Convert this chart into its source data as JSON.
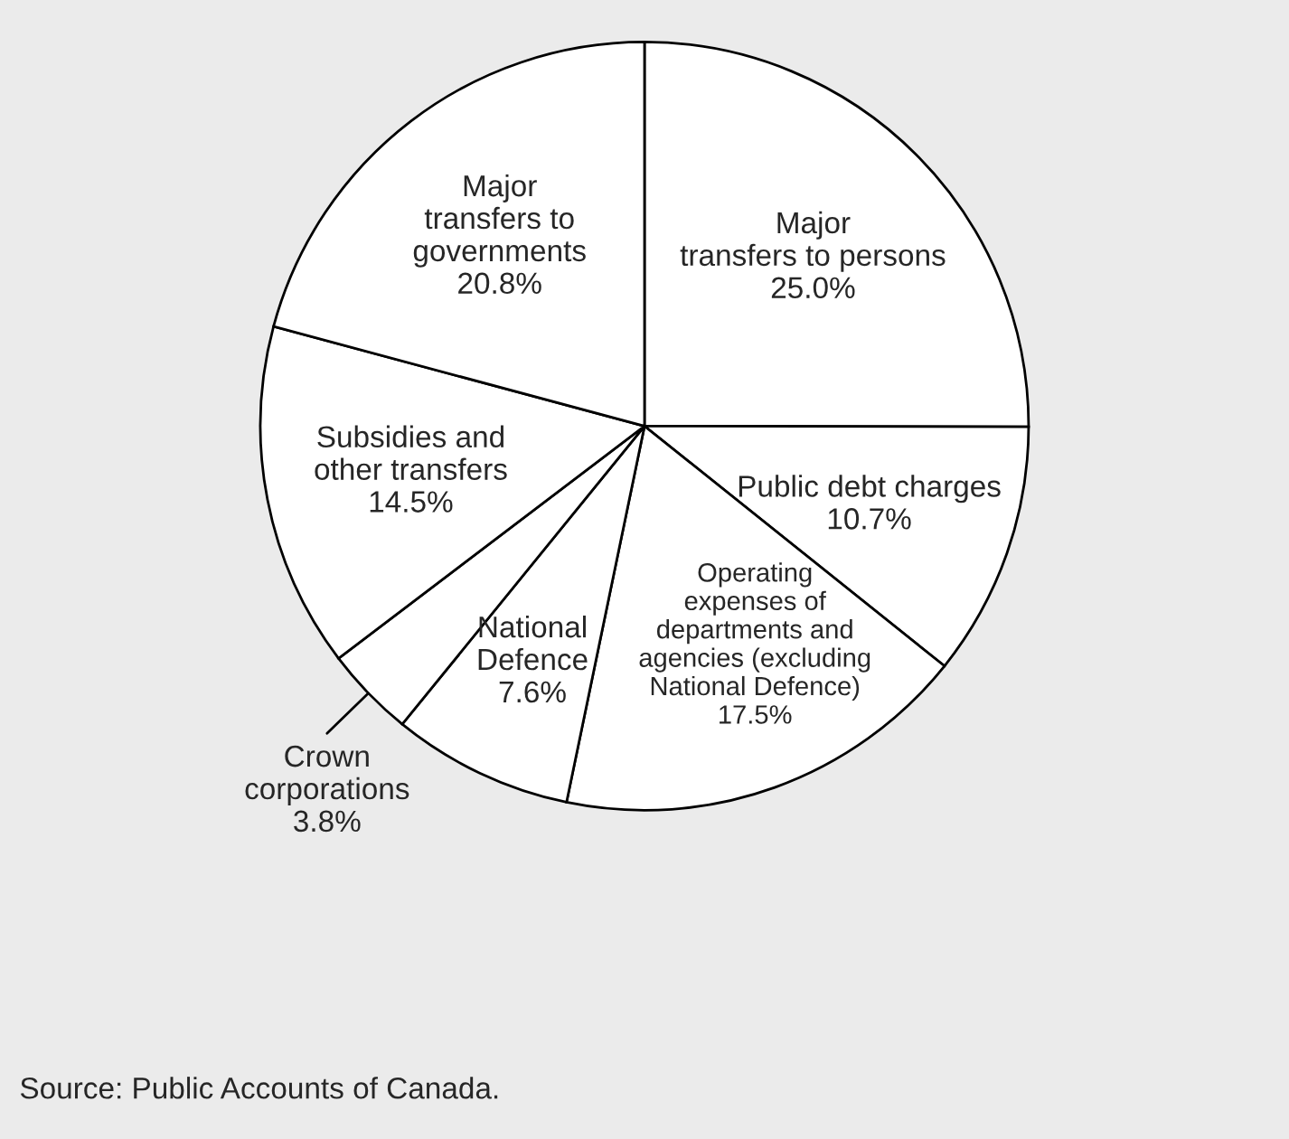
{
  "chart_data": {
    "type": "pie",
    "categories": [
      "Major\ntransfers to persons",
      "Public debt charges",
      "Operating\nexpenses of\ndepartments and\nagencies (excluding\nNational Defence)",
      "National\nDefence",
      "Crown\ncorporations",
      "Subsidies and\nother transfers",
      "Major\ntransfers to\ngovernments"
    ],
    "values": [
      25.0,
      10.7,
      17.5,
      7.6,
      3.8,
      14.5,
      20.8
    ],
    "value_labels": [
      "25.0%",
      "10.7%",
      "17.5%",
      "7.6%",
      "3.8%",
      "14.5%",
      "20.8%"
    ],
    "colors": [
      "#ffffff",
      "#ffffff",
      "#ffffff",
      "#ffffff",
      "#ffffff",
      "#ffffff",
      "#ffffff"
    ],
    "legend": false,
    "annotations": [
      "Source: Public Accounts of Canada."
    ]
  }
}
